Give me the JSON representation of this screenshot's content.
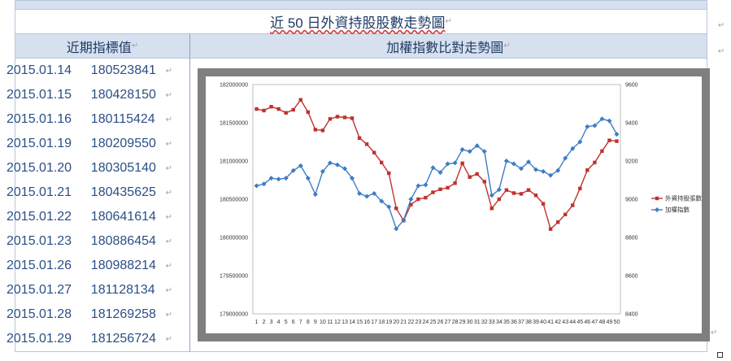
{
  "table": {
    "title": "近 50 日外資持股股數走勢圖",
    "left_header": "近期指標值",
    "right_header": "加權指數比對走勢圖",
    "para_mark": "↵",
    "rows": [
      {
        "date": "2015.01.14",
        "value": "180523841"
      },
      {
        "date": "2015.01.15",
        "value": "180428150"
      },
      {
        "date": "2015.01.16",
        "value": "180115424"
      },
      {
        "date": "2015.01.19",
        "value": "180209550"
      },
      {
        "date": "2015.01.20",
        "value": "180305140"
      },
      {
        "date": "2015.01.21",
        "value": "180435625"
      },
      {
        "date": "2015.01.22",
        "value": "180641614"
      },
      {
        "date": "2015.01.23",
        "value": "180886454"
      },
      {
        "date": "2015.01.26",
        "value": "180988214"
      },
      {
        "date": "2015.01.27",
        "value": "181128134"
      },
      {
        "date": "2015.01.28",
        "value": "181269258"
      },
      {
        "date": "2015.01.29",
        "value": "181256724"
      }
    ]
  },
  "chart_data": {
    "type": "line",
    "x": [
      1,
      2,
      3,
      4,
      5,
      6,
      7,
      8,
      9,
      10,
      11,
      12,
      13,
      14,
      15,
      16,
      17,
      18,
      19,
      20,
      21,
      22,
      23,
      24,
      25,
      26,
      27,
      28,
      29,
      30,
      31,
      32,
      33,
      34,
      35,
      36,
      37,
      38,
      39,
      40,
      41,
      42,
      43,
      44,
      45,
      46,
      47,
      48,
      49,
      50
    ],
    "y_left_lim": [
      179000000,
      182000000
    ],
    "y_left_ticks": [
      "182000000",
      "181500000",
      "181000000",
      "180500000",
      "180000000",
      "179500000",
      "179000000"
    ],
    "y_right_lim": [
      8400,
      9600
    ],
    "y_right_ticks": [
      "9600",
      "9400",
      "9200",
      "9000",
      "8800",
      "8600",
      "8400"
    ],
    "legend_position": "right",
    "series": [
      {
        "name": "外資持股張數",
        "axis": "left",
        "color": "#c0312e",
        "marker": "square",
        "values": [
          181680000,
          181660000,
          181710000,
          181680000,
          181630000,
          181670000,
          181800000,
          181640000,
          181410000,
          181400000,
          181550000,
          181580000,
          181570000,
          181560000,
          181300000,
          181220000,
          181110000,
          180980000,
          180840000,
          180380000,
          180220000,
          180430000,
          180500000,
          180520000,
          180590000,
          180630000,
          180650000,
          180710000,
          180970000,
          180790000,
          180830000,
          180730000,
          180380000,
          180500000,
          180620000,
          180580000,
          180570000,
          180620000,
          180550000,
          180440000,
          180110000,
          180200000,
          180300000,
          180420000,
          180640000,
          180880000,
          180980000,
          181130000,
          181270000,
          181260000
        ]
      },
      {
        "name": "加權指數",
        "axis": "right",
        "color": "#3f7cc4",
        "marker": "diamond",
        "values": [
          9070,
          9080,
          9110,
          9105,
          9110,
          9150,
          9175,
          9110,
          9025,
          9145,
          9190,
          9180,
          9160,
          9110,
          9030,
          9015,
          9030,
          8990,
          8960,
          8845,
          8890,
          9000,
          9070,
          9075,
          9165,
          9140,
          9185,
          9190,
          9260,
          9250,
          9280,
          9250,
          9020,
          9050,
          9200,
          9185,
          9160,
          9195,
          9155,
          9145,
          9125,
          9150,
          9215,
          9265,
          9300,
          9380,
          9385,
          9420,
          9410,
          9340
        ]
      }
    ]
  },
  "colors": {
    "header_bg": "#d6e0ee",
    "text_blue": "#2a4f86",
    "frame_gray": "#7f7f7f"
  }
}
